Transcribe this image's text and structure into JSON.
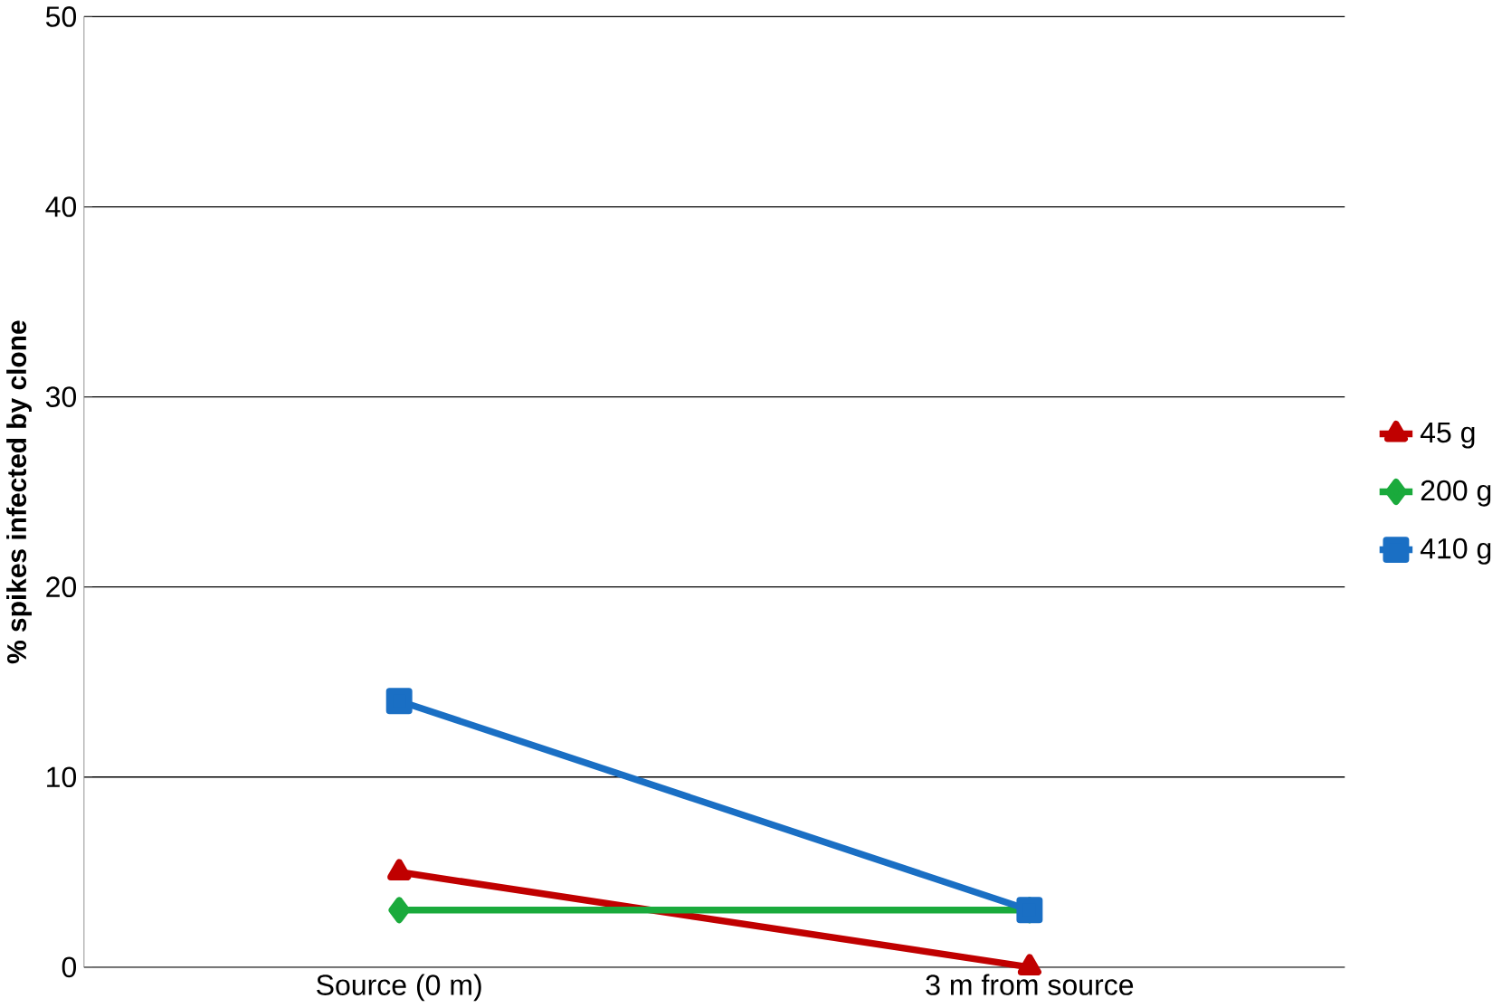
{
  "chart_data": {
    "type": "line",
    "ylabel": "% spikes infected by clone",
    "categories": [
      "Source (0 m)",
      "3 m from source"
    ],
    "series": [
      {
        "name": "45 g",
        "color": "#c00000",
        "marker": "triangle",
        "values": [
          5,
          0
        ]
      },
      {
        "name": "200 g",
        "color": "#1aaa3c",
        "marker": "diamond",
        "values": [
          3,
          3
        ]
      },
      {
        "name": "410 g",
        "color": "#1a6fc4",
        "marker": "square",
        "values": [
          14,
          3
        ]
      }
    ],
    "ylim": [
      0,
      50
    ],
    "yticks": [
      0,
      10,
      20,
      30,
      40,
      50
    ],
    "grid": "y",
    "legend": "right",
    "line_style": "solid"
  }
}
